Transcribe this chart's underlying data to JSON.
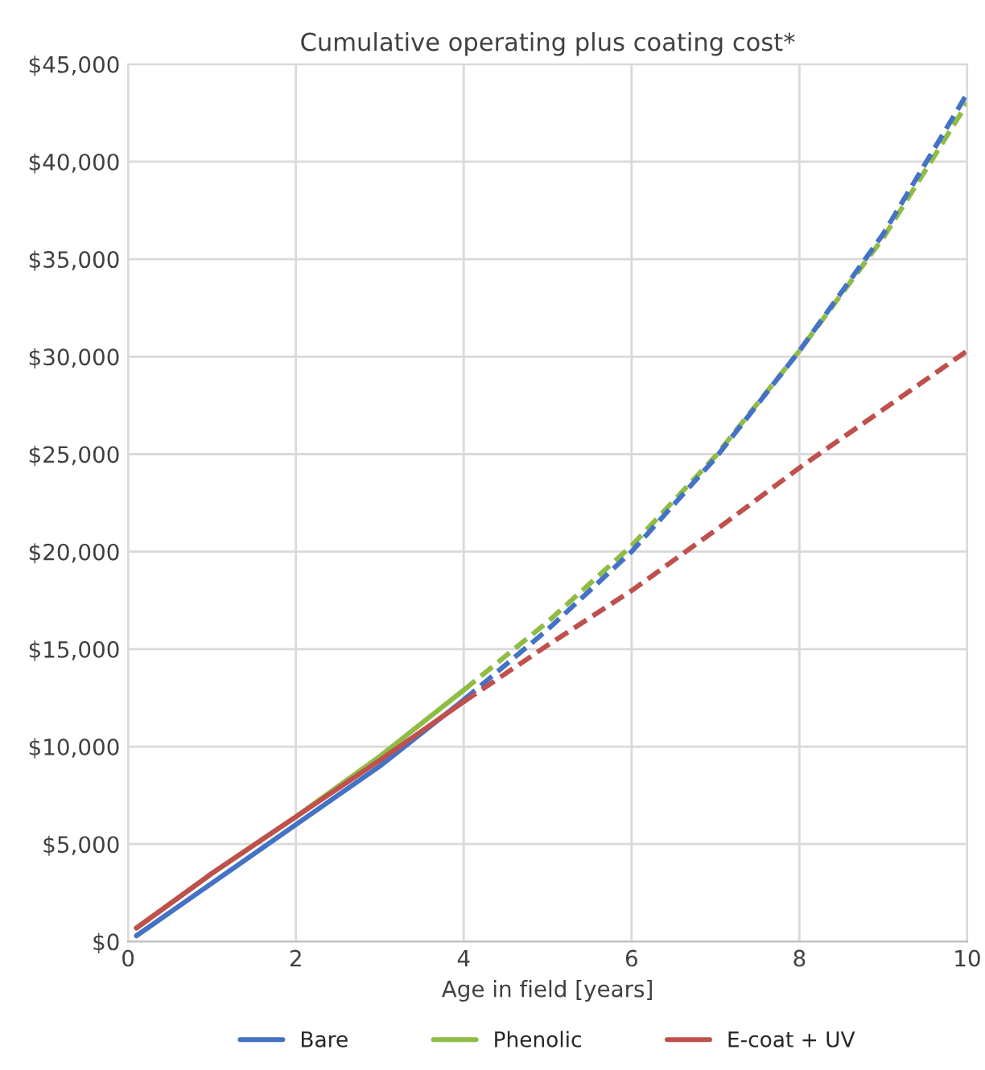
{
  "chart_data": {
    "type": "line",
    "title": "Cumulative operating plus coating cost*",
    "xlabel": "Age in field [years]",
    "xlim": [
      0,
      10
    ],
    "xticks": [
      0,
      2,
      4,
      6,
      8,
      10
    ],
    "ylim": [
      0,
      45000
    ],
    "yticks": [
      {
        "value": 0,
        "label": "$0"
      },
      {
        "value": 5000,
        "label": "$5,000"
      },
      {
        "value": 10000,
        "label": "$10,000"
      },
      {
        "value": 15000,
        "label": "$15,000"
      },
      {
        "value": 20000,
        "label": "$20,000"
      },
      {
        "value": 25000,
        "label": "$25,000"
      },
      {
        "value": 30000,
        "label": "$30,000"
      },
      {
        "value": 35000,
        "label": "$35,000"
      },
      {
        "value": 40000,
        "label": "$40,000"
      },
      {
        "value": 45000,
        "label": "$45,000"
      }
    ],
    "grid": true,
    "legend": "bottom",
    "marker": "none",
    "series": [
      {
        "name": "Bare",
        "color": "#4472c4",
        "line_style": "solid",
        "x": [
          0.1,
          1,
          2,
          3,
          4
        ],
        "values": [
          300,
          3000,
          6000,
          9000,
          12400
        ]
      },
      {
        "name": "Phenolic",
        "color": "#8fbc45",
        "line_style": "solid",
        "x": [
          0.1,
          1,
          2,
          3,
          4
        ],
        "values": [
          700,
          3500,
          6400,
          9500,
          12900
        ]
      },
      {
        "name": "E-coat + UV",
        "color": "#c0504d",
        "line_style": "solid",
        "x": [
          0.1,
          1,
          2,
          3,
          4
        ],
        "values": [
          700,
          3500,
          6400,
          9300,
          12300
        ]
      },
      {
        "color": "#8fbc45",
        "line_style": "dashed",
        "x": [
          4,
          5,
          6,
          7,
          8,
          9,
          10
        ],
        "values": [
          12900,
          16400,
          20300,
          24900,
          30300,
          36100,
          43000
        ]
      },
      {
        "color": "#4472c4",
        "line_style": "dashed",
        "x": [
          4,
          5,
          6,
          7,
          8,
          9,
          10
        ],
        "values": [
          12400,
          16000,
          20000,
          24800,
          30300,
          36300,
          43500
        ]
      },
      {
        "color": "#c0504d",
        "line_style": "dashed",
        "x": [
          4,
          5,
          6,
          7,
          8,
          9,
          10
        ],
        "values": [
          12300,
          15200,
          18000,
          21100,
          24300,
          27300,
          30300
        ]
      }
    ]
  }
}
